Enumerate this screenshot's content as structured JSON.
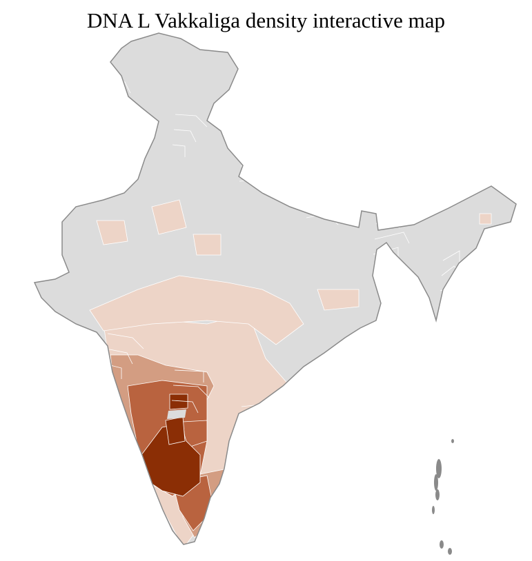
{
  "title": "DNA L Vakkaliga density interactive map",
  "colors": {
    "no_data": "#dcdcdc",
    "level_1": "#edd4c7",
    "level_2": "#d39d82",
    "level_3": "#b9633f",
    "level_4": "#8b2e05",
    "district_border": "#ffffff",
    "state_border": "#8a8a8a"
  }
}
